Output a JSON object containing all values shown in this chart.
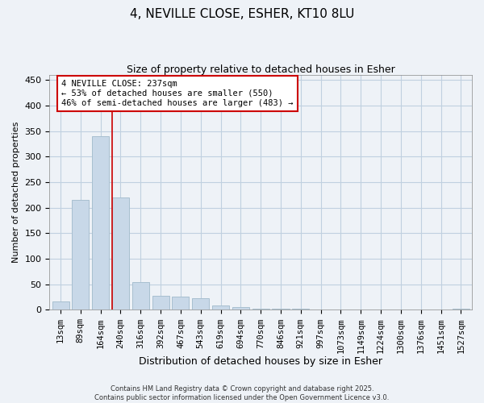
{
  "title_line1": "4, NEVILLE CLOSE, ESHER, KT10 8LU",
  "title_line2": "Size of property relative to detached houses in Esher",
  "xlabel": "Distribution of detached houses by size in Esher",
  "ylabel": "Number of detached properties",
  "bar_labels": [
    "13sqm",
    "89sqm",
    "164sqm",
    "240sqm",
    "316sqm",
    "392sqm",
    "467sqm",
    "543sqm",
    "619sqm",
    "694sqm",
    "770sqm",
    "846sqm",
    "921sqm",
    "997sqm",
    "1073sqm",
    "1149sqm",
    "1224sqm",
    "1300sqm",
    "1376sqm",
    "1451sqm",
    "1527sqm"
  ],
  "bar_values": [
    17,
    215,
    340,
    220,
    55,
    27,
    26,
    22,
    9,
    5,
    2,
    2,
    2,
    1,
    1,
    0,
    1,
    0,
    0,
    1,
    2
  ],
  "bar_color": "#c8d8e8",
  "bar_edge_color": "#a8bfd0",
  "vline_x": 3,
  "vline_color": "#cc0000",
  "annotation_text": "4 NEVILLE CLOSE: 237sqm\n← 53% of detached houses are smaller (550)\n46% of semi-detached houses are larger (483) →",
  "annotation_box_color": "#ffffff",
  "annotation_box_edge": "#cc0000",
  "footnote": "Contains HM Land Registry data © Crown copyright and database right 2025.\nContains public sector information licensed under the Open Government Licence v3.0.",
  "ylim": [
    0,
    460
  ],
  "yticks": [
    0,
    50,
    100,
    150,
    200,
    250,
    300,
    350,
    400,
    450
  ],
  "background_color": "#eef2f7",
  "grid_color": "#c0d0e0",
  "title_fontsize": 11,
  "subtitle_fontsize": 9,
  "ylabel_fontsize": 8,
  "xlabel_fontsize": 9,
  "tick_fontsize": 7.5,
  "footnote_fontsize": 6,
  "annot_fontsize": 7.5
}
